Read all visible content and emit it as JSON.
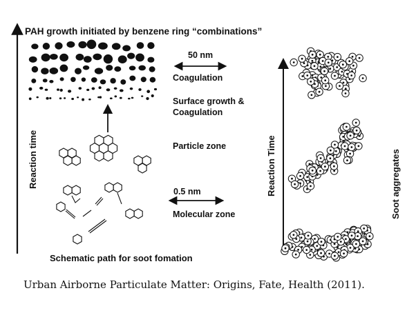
{
  "header": {
    "title": "PAH growth initiated by benzene ring “combinations”"
  },
  "scales": {
    "top": "50 nm",
    "bottom": "0.5  nm"
  },
  "labels": {
    "coagulation": "Coagulation",
    "surface_growth_line1": "Surface growth &",
    "surface_growth_line2": "Coagulation",
    "particle_zone": "Particle zone",
    "molecular_zone": "Molecular zone",
    "schematic": "Schematic path for soot fomation"
  },
  "axes": {
    "left": "Reaction time",
    "right": "Reaction Time",
    "soot": "Soot aggregates"
  },
  "caption": "Urban Airborne Particulate Matter: Origins, Fate, Health (2011)."
}
